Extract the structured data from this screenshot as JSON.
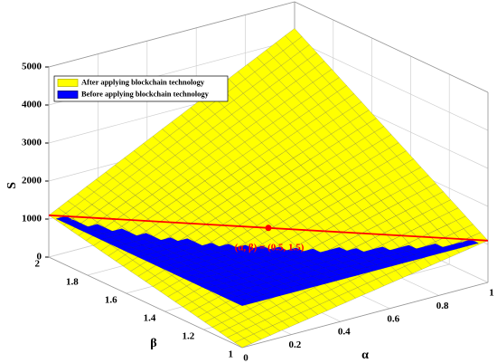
{
  "chart_data": {
    "type": "surface",
    "xlabel": "α",
    "ylabel": "β",
    "zlabel": "S",
    "xlim": [
      0,
      1
    ],
    "xticks": [
      0,
      0.2,
      0.4,
      0.6,
      0.8,
      1
    ],
    "ylim": [
      1,
      2
    ],
    "yticks": [
      1,
      1.2,
      1.4,
      1.6,
      1.8,
      2
    ],
    "zlim": [
      0,
      5000
    ],
    "zticks": [
      0,
      1000,
      2000,
      3000,
      4000,
      5000
    ],
    "grid": true,
    "legend": "upper left",
    "series": [
      {
        "name": "After applying blockchain technology",
        "color": "#ffff00",
        "x": [
          0,
          1
        ],
        "y": [
          1,
          2
        ],
        "z": [
          [
            0,
            1100
          ],
          [
            1100,
            4300
          ]
        ]
      },
      {
        "name": "Before applying blockchain technology",
        "color": "#0000ff",
        "x": [
          0,
          1
        ],
        "y": [
          1,
          2
        ],
        "z": [
          [
            1100,
            1100
          ],
          [
            1100,
            1100
          ]
        ]
      }
    ],
    "marker": {
      "label": "(α, β) = (0.5, 1.5)",
      "x": 0.5,
      "y": 1.5,
      "z": 1100,
      "color": "#ff0000"
    }
  }
}
